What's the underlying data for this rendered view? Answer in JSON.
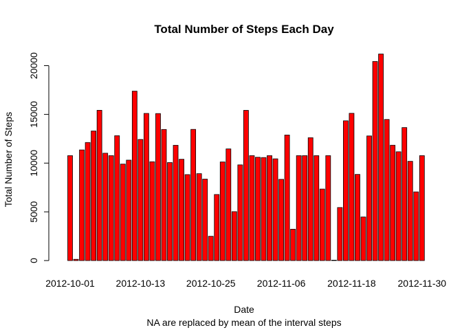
{
  "chart_data": {
    "type": "bar",
    "title": "Total Number of Steps Each Day",
    "xlabel": "Date",
    "ylabel": "Total Number of Steps",
    "subtitle": "NA are replaced by mean of the interval steps",
    "ylim": [
      0,
      21500
    ],
    "yticks": [
      0,
      5000,
      10000,
      15000,
      20000
    ],
    "grid": false,
    "legend": "none",
    "bar_color": "#ff0000",
    "bar_edge_color": "#000000",
    "x_tick_labels": [
      {
        "index": 0,
        "label": "2012-10-01"
      },
      {
        "index": 12,
        "label": "2012-10-13"
      },
      {
        "index": 24,
        "label": "2012-10-25"
      },
      {
        "index": 36,
        "label": "2012-11-06"
      },
      {
        "index": 48,
        "label": "2012-11-18"
      },
      {
        "index": 60,
        "label": "2012-11-30"
      }
    ],
    "categories": [
      "2012-10-01",
      "2012-10-02",
      "2012-10-03",
      "2012-10-04",
      "2012-10-05",
      "2012-10-06",
      "2012-10-07",
      "2012-10-08",
      "2012-10-09",
      "2012-10-10",
      "2012-10-11",
      "2012-10-12",
      "2012-10-13",
      "2012-10-14",
      "2012-10-15",
      "2012-10-16",
      "2012-10-17",
      "2012-10-18",
      "2012-10-19",
      "2012-10-20",
      "2012-10-21",
      "2012-10-22",
      "2012-10-23",
      "2012-10-24",
      "2012-10-25",
      "2012-10-26",
      "2012-10-27",
      "2012-10-28",
      "2012-10-29",
      "2012-10-30",
      "2012-10-31",
      "2012-11-01",
      "2012-11-02",
      "2012-11-03",
      "2012-11-04",
      "2012-11-05",
      "2012-11-06",
      "2012-11-07",
      "2012-11-08",
      "2012-11-09",
      "2012-11-10",
      "2012-11-11",
      "2012-11-12",
      "2012-11-13",
      "2012-11-14",
      "2012-11-15",
      "2012-11-16",
      "2012-11-17",
      "2012-11-18",
      "2012-11-19",
      "2012-11-20",
      "2012-11-21",
      "2012-11-22",
      "2012-11-23",
      "2012-11-24",
      "2012-11-25",
      "2012-11-26",
      "2012-11-27",
      "2012-11-28",
      "2012-11-29",
      "2012-11-30"
    ],
    "values": [
      10766,
      126,
      11352,
      12116,
      13294,
      15420,
      11015,
      10766,
      12811,
      9900,
      10304,
      17382,
      12426,
      15098,
      10139,
      15084,
      13452,
      10056,
      11829,
      10395,
      8821,
      13460,
      8918,
      8355,
      2492,
      6778,
      10119,
      11458,
      5018,
      9819,
      15414,
      10766,
      10600,
      10571,
      10766,
      10439,
      8334,
      12883,
      3219,
      10766,
      10766,
      12608,
      10765,
      7336,
      10766,
      41,
      5441,
      14339,
      15110,
      8841,
      4472,
      12787,
      20427,
      21194,
      14478,
      11834,
      11162,
      13646,
      10183,
      7047,
      10766
    ]
  }
}
